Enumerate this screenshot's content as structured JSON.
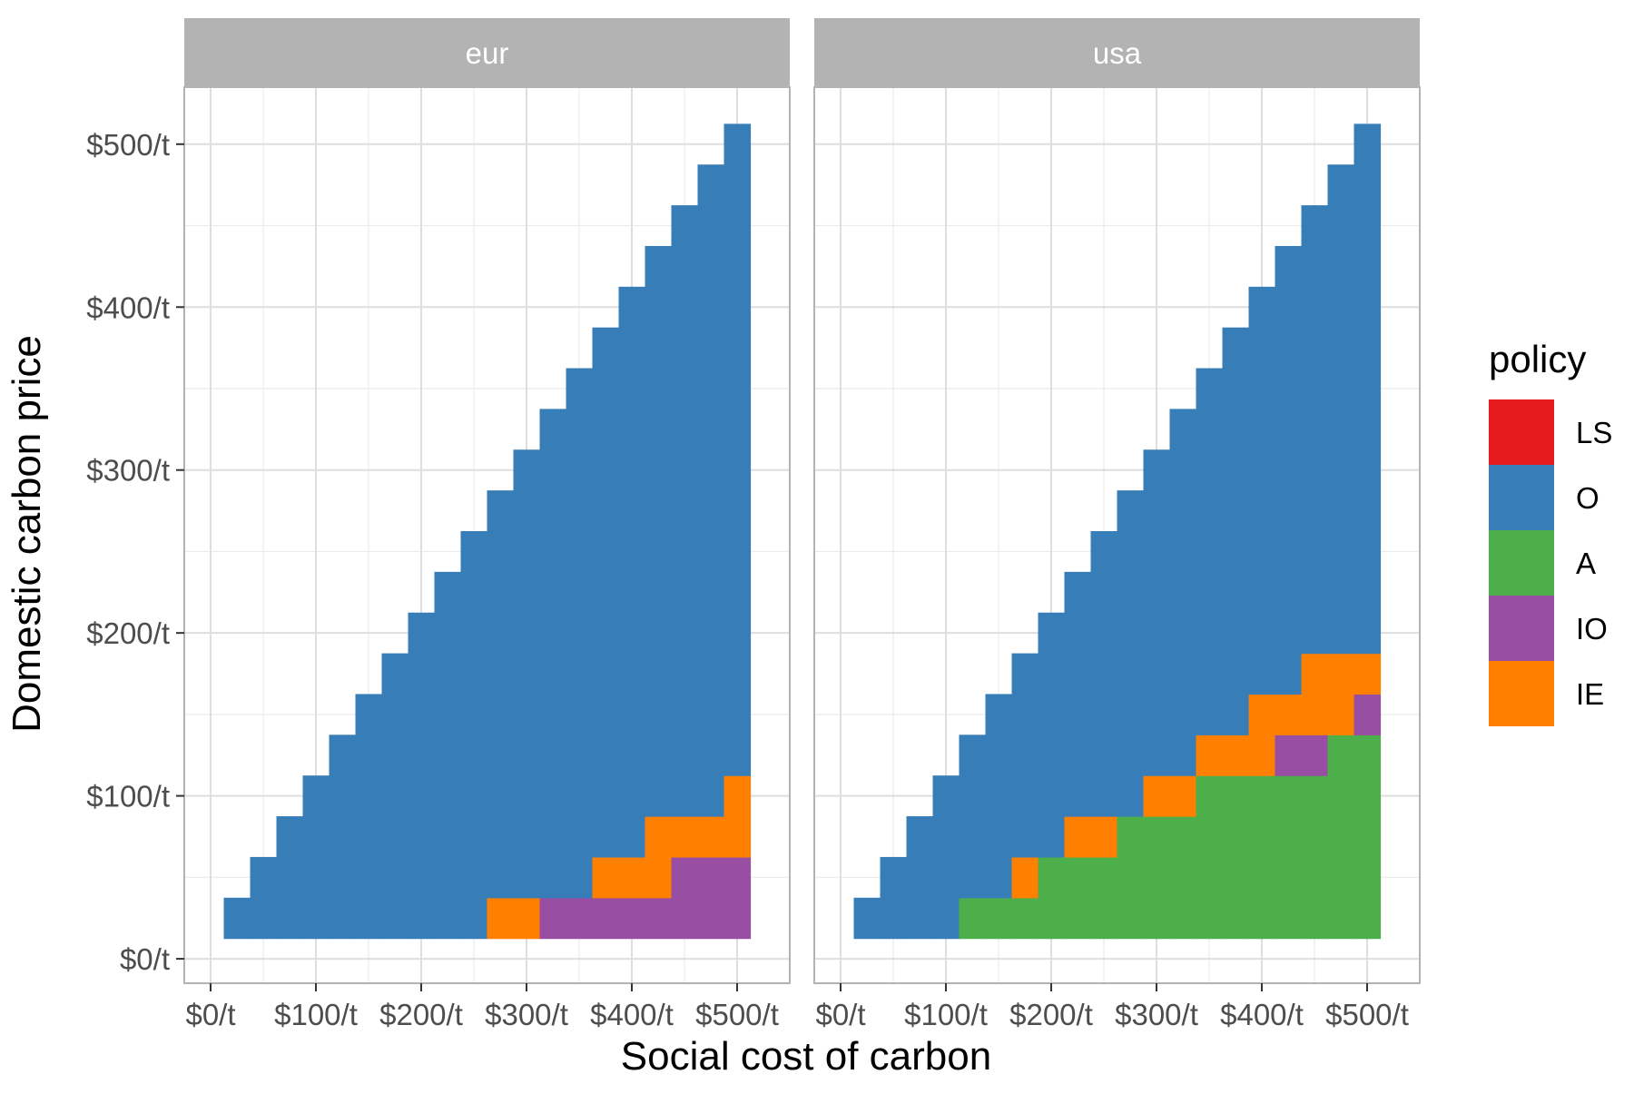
{
  "chart_data": {
    "type": "heatmap",
    "xlabel": "Social cost of carbon",
    "ylabel": "Domestic carbon price",
    "x_ticks": [
      0,
      100,
      200,
      300,
      400,
      500
    ],
    "y_ticks": [
      0,
      100,
      200,
      300,
      400,
      500
    ],
    "tick_format": "$%/t",
    "xlim": [
      -25,
      550
    ],
    "ylim": [
      -15,
      535
    ],
    "cell_width": 25,
    "cell_height": 25,
    "grid": true,
    "legend": {
      "title": "policy",
      "position": "right",
      "items": [
        {
          "key": "LS",
          "label": "LS",
          "color": "#e41a1c"
        },
        {
          "key": "O",
          "label": "O",
          "color": "#377eb8"
        },
        {
          "key": "A",
          "label": "A",
          "color": "#4daf4a"
        },
        {
          "key": "IO",
          "label": "IO",
          "color": "#984ea3"
        },
        {
          "key": "IE",
          "label": "IE",
          "color": "#ff7f00"
        }
      ]
    },
    "panels": [
      {
        "title": "eur",
        "columns": [
          {
            "x": 25,
            "segments": [
              {
                "from": 12.5,
                "to": 37.5,
                "policy": "O"
              }
            ]
          },
          {
            "x": 50,
            "segments": [
              {
                "from": 12.5,
                "to": 62.5,
                "policy": "O"
              }
            ]
          },
          {
            "x": 75,
            "segments": [
              {
                "from": 12.5,
                "to": 87.5,
                "policy": "O"
              }
            ]
          },
          {
            "x": 100,
            "segments": [
              {
                "from": 12.5,
                "to": 112.5,
                "policy": "O"
              }
            ]
          },
          {
            "x": 125,
            "segments": [
              {
                "from": 12.5,
                "to": 137.5,
                "policy": "O"
              }
            ]
          },
          {
            "x": 150,
            "segments": [
              {
                "from": 12.5,
                "to": 162.5,
                "policy": "O"
              }
            ]
          },
          {
            "x": 175,
            "segments": [
              {
                "from": 12.5,
                "to": 187.5,
                "policy": "O"
              }
            ]
          },
          {
            "x": 200,
            "segments": [
              {
                "from": 12.5,
                "to": 212.5,
                "policy": "O"
              }
            ]
          },
          {
            "x": 225,
            "segments": [
              {
                "from": 12.5,
                "to": 237.5,
                "policy": "O"
              }
            ]
          },
          {
            "x": 250,
            "segments": [
              {
                "from": 12.5,
                "to": 262.5,
                "policy": "O"
              }
            ]
          },
          {
            "x": 275,
            "segments": [
              {
                "from": 12.5,
                "to": 37.5,
                "policy": "IE"
              },
              {
                "from": 37.5,
                "to": 287.5,
                "policy": "O"
              }
            ]
          },
          {
            "x": 300,
            "segments": [
              {
                "from": 12.5,
                "to": 37.5,
                "policy": "IE"
              },
              {
                "from": 37.5,
                "to": 312.5,
                "policy": "O"
              }
            ]
          },
          {
            "x": 325,
            "segments": [
              {
                "from": 12.5,
                "to": 37.5,
                "policy": "IO"
              },
              {
                "from": 37.5,
                "to": 337.5,
                "policy": "O"
              }
            ]
          },
          {
            "x": 350,
            "segments": [
              {
                "from": 12.5,
                "to": 37.5,
                "policy": "IO"
              },
              {
                "from": 37.5,
                "to": 362.5,
                "policy": "O"
              }
            ]
          },
          {
            "x": 375,
            "segments": [
              {
                "from": 12.5,
                "to": 37.5,
                "policy": "IO"
              },
              {
                "from": 37.5,
                "to": 62.5,
                "policy": "IE"
              },
              {
                "from": 62.5,
                "to": 387.5,
                "policy": "O"
              }
            ]
          },
          {
            "x": 400,
            "segments": [
              {
                "from": 12.5,
                "to": 37.5,
                "policy": "IO"
              },
              {
                "from": 37.5,
                "to": 62.5,
                "policy": "IE"
              },
              {
                "from": 62.5,
                "to": 412.5,
                "policy": "O"
              }
            ]
          },
          {
            "x": 425,
            "segments": [
              {
                "from": 12.5,
                "to": 37.5,
                "policy": "IO"
              },
              {
                "from": 37.5,
                "to": 87.5,
                "policy": "IE"
              },
              {
                "from": 87.5,
                "to": 437.5,
                "policy": "O"
              }
            ]
          },
          {
            "x": 450,
            "segments": [
              {
                "from": 12.5,
                "to": 62.5,
                "policy": "IO"
              },
              {
                "from": 62.5,
                "to": 87.5,
                "policy": "IE"
              },
              {
                "from": 87.5,
                "to": 462.5,
                "policy": "O"
              }
            ]
          },
          {
            "x": 475,
            "segments": [
              {
                "from": 12.5,
                "to": 62.5,
                "policy": "IO"
              },
              {
                "from": 62.5,
                "to": 87.5,
                "policy": "IE"
              },
              {
                "from": 87.5,
                "to": 487.5,
                "policy": "O"
              }
            ]
          },
          {
            "x": 500,
            "segments": [
              {
                "from": 12.5,
                "to": 62.5,
                "policy": "IO"
              },
              {
                "from": 62.5,
                "to": 112.5,
                "policy": "IE"
              },
              {
                "from": 112.5,
                "to": 512.5,
                "policy": "O"
              }
            ]
          }
        ]
      },
      {
        "title": "usa",
        "columns": [
          {
            "x": 25,
            "segments": [
              {
                "from": 12.5,
                "to": 37.5,
                "policy": "O"
              }
            ]
          },
          {
            "x": 50,
            "segments": [
              {
                "from": 12.5,
                "to": 62.5,
                "policy": "O"
              }
            ]
          },
          {
            "x": 75,
            "segments": [
              {
                "from": 12.5,
                "to": 87.5,
                "policy": "O"
              }
            ]
          },
          {
            "x": 100,
            "segments": [
              {
                "from": 12.5,
                "to": 112.5,
                "policy": "O"
              }
            ]
          },
          {
            "x": 125,
            "segments": [
              {
                "from": 12.5,
                "to": 37.5,
                "policy": "A"
              },
              {
                "from": 37.5,
                "to": 137.5,
                "policy": "O"
              }
            ]
          },
          {
            "x": 150,
            "segments": [
              {
                "from": 12.5,
                "to": 37.5,
                "policy": "A"
              },
              {
                "from": 37.5,
                "to": 162.5,
                "policy": "O"
              }
            ]
          },
          {
            "x": 175,
            "segments": [
              {
                "from": 12.5,
                "to": 37.5,
                "policy": "A"
              },
              {
                "from": 37.5,
                "to": 62.5,
                "policy": "IE"
              },
              {
                "from": 62.5,
                "to": 187.5,
                "policy": "O"
              }
            ]
          },
          {
            "x": 200,
            "segments": [
              {
                "from": 12.5,
                "to": 62.5,
                "policy": "A"
              },
              {
                "from": 62.5,
                "to": 212.5,
                "policy": "O"
              }
            ]
          },
          {
            "x": 225,
            "segments": [
              {
                "from": 12.5,
                "to": 62.5,
                "policy": "A"
              },
              {
                "from": 62.5,
                "to": 87.5,
                "policy": "IE"
              },
              {
                "from": 87.5,
                "to": 237.5,
                "policy": "O"
              }
            ]
          },
          {
            "x": 250,
            "segments": [
              {
                "from": 12.5,
                "to": 62.5,
                "policy": "A"
              },
              {
                "from": 62.5,
                "to": 87.5,
                "policy": "IE"
              },
              {
                "from": 87.5,
                "to": 262.5,
                "policy": "O"
              }
            ]
          },
          {
            "x": 275,
            "segments": [
              {
                "from": 12.5,
                "to": 87.5,
                "policy": "A"
              },
              {
                "from": 87.5,
                "to": 287.5,
                "policy": "O"
              }
            ]
          },
          {
            "x": 300,
            "segments": [
              {
                "from": 12.5,
                "to": 87.5,
                "policy": "A"
              },
              {
                "from": 87.5,
                "to": 112.5,
                "policy": "IE"
              },
              {
                "from": 112.5,
                "to": 312.5,
                "policy": "O"
              }
            ]
          },
          {
            "x": 325,
            "segments": [
              {
                "from": 12.5,
                "to": 87.5,
                "policy": "A"
              },
              {
                "from": 87.5,
                "to": 112.5,
                "policy": "IE"
              },
              {
                "from": 112.5,
                "to": 337.5,
                "policy": "O"
              }
            ]
          },
          {
            "x": 350,
            "segments": [
              {
                "from": 12.5,
                "to": 112.5,
                "policy": "A"
              },
              {
                "from": 112.5,
                "to": 137.5,
                "policy": "IE"
              },
              {
                "from": 137.5,
                "to": 362.5,
                "policy": "O"
              }
            ]
          },
          {
            "x": 375,
            "segments": [
              {
                "from": 12.5,
                "to": 112.5,
                "policy": "A"
              },
              {
                "from": 112.5,
                "to": 137.5,
                "policy": "IE"
              },
              {
                "from": 137.5,
                "to": 387.5,
                "policy": "O"
              }
            ]
          },
          {
            "x": 400,
            "segments": [
              {
                "from": 12.5,
                "to": 112.5,
                "policy": "A"
              },
              {
                "from": 112.5,
                "to": 137.5,
                "policy": "IE"
              },
              {
                "from": 137.5,
                "to": 162.5,
                "policy": "IE"
              },
              {
                "from": 162.5,
                "to": 412.5,
                "policy": "O"
              }
            ]
          },
          {
            "x": 425,
            "segments": [
              {
                "from": 12.5,
                "to": 112.5,
                "policy": "A"
              },
              {
                "from": 112.5,
                "to": 137.5,
                "policy": "IO"
              },
              {
                "from": 137.5,
                "to": 162.5,
                "policy": "IE"
              },
              {
                "from": 162.5,
                "to": 437.5,
                "policy": "O"
              }
            ]
          },
          {
            "x": 450,
            "segments": [
              {
                "from": 12.5,
                "to": 112.5,
                "policy": "A"
              },
              {
                "from": 112.5,
                "to": 137.5,
                "policy": "IO"
              },
              {
                "from": 137.5,
                "to": 187.5,
                "policy": "IE"
              },
              {
                "from": 187.5,
                "to": 462.5,
                "policy": "O"
              }
            ]
          },
          {
            "x": 475,
            "segments": [
              {
                "from": 12.5,
                "to": 137.5,
                "policy": "A"
              },
              {
                "from": 137.5,
                "to": 187.5,
                "policy": "IE"
              },
              {
                "from": 187.5,
                "to": 487.5,
                "policy": "O"
              }
            ]
          },
          {
            "x": 500,
            "segments": [
              {
                "from": 12.5,
                "to": 137.5,
                "policy": "A"
              },
              {
                "from": 137.5,
                "to": 162.5,
                "policy": "IO"
              },
              {
                "from": 162.5,
                "to": 187.5,
                "policy": "IE"
              },
              {
                "from": 187.5,
                "to": 512.5,
                "policy": "O"
              }
            ]
          }
        ]
      }
    ]
  }
}
